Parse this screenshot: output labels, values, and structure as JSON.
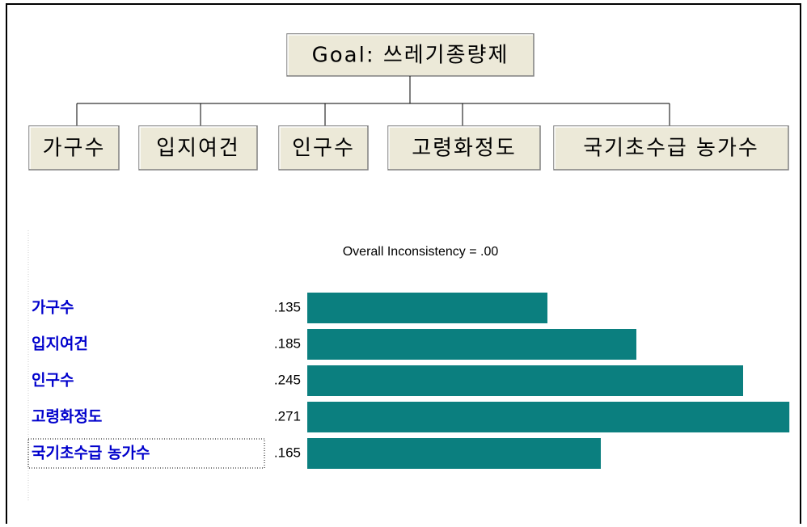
{
  "hierarchy": {
    "goal": "Goal: 쓰레기종량제",
    "criteria": [
      "가구수",
      "입지여건",
      "인구수",
      "고령화정도",
      "국기초수급 농가수"
    ]
  },
  "chart_data": {
    "type": "bar",
    "orientation": "horizontal",
    "title": "Overall Inconsistency = .00",
    "categories": [
      "가구수",
      "입지여건",
      "인구수",
      "고령화정도",
      "국기초수급 농가수"
    ],
    "values": [
      0.135,
      0.185,
      0.245,
      0.271,
      0.165
    ],
    "value_labels": [
      ".135",
      ".185",
      ".245",
      ".271",
      ".165"
    ],
    "color": "#0b7f7f"
  }
}
